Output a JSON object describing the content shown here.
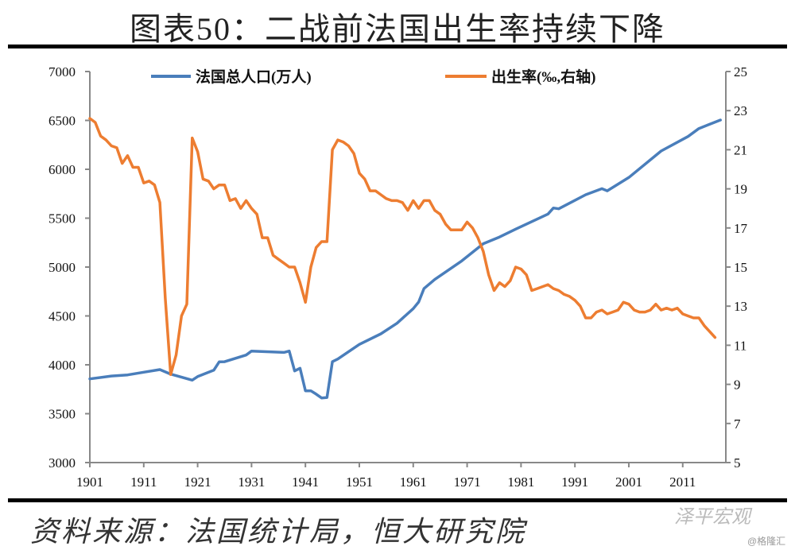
{
  "title": "图表50：二战前法国出生率持续下降",
  "source": "资料来源：法国统计局，恒大研究院",
  "watermark": "泽平宏观",
  "watermark2": "@格隆汇",
  "chart_data": {
    "type": "line",
    "title": "图表50：二战前法国出生率持续下降",
    "xlabel": "",
    "ylabel": "",
    "xlim": [
      1901,
      2019
    ],
    "ylim": [
      3000,
      7000
    ],
    "y2lim": [
      5,
      25
    ],
    "grid": false,
    "legend": "top",
    "x_ticks": [
      "1901",
      "1911",
      "1921",
      "1931",
      "1941",
      "1951",
      "1961",
      "1971",
      "1981",
      "1991",
      "2001",
      "2011"
    ],
    "y_ticks": [
      "3000",
      "3500",
      "4000",
      "4500",
      "5000",
      "5500",
      "6000",
      "6500",
      "7000"
    ],
    "y2_ticks": [
      "5",
      "7",
      "9",
      "11",
      "13",
      "15",
      "17",
      "19",
      "21",
      "23",
      "25"
    ],
    "colors": {
      "population": "#4a7ebb",
      "birth_rate": "#ed7d31"
    },
    "series": [
      {
        "name": "法国总人口(万人)",
        "axis": "left",
        "points": [
          [
            1901,
            3856
          ],
          [
            1905,
            3885
          ],
          [
            1908,
            3897
          ],
          [
            1911,
            3924
          ],
          [
            1914,
            3951
          ],
          [
            1916,
            3905
          ],
          [
            1920,
            3843
          ],
          [
            1921,
            3880
          ],
          [
            1924,
            3945
          ],
          [
            1925,
            4030
          ],
          [
            1926,
            4032
          ],
          [
            1930,
            4100
          ],
          [
            1931,
            4141
          ],
          [
            1937,
            4127
          ],
          [
            1938,
            4141
          ],
          [
            1939,
            3937
          ],
          [
            1940,
            3965
          ],
          [
            1941,
            3734
          ],
          [
            1942,
            3734
          ],
          [
            1943,
            3700
          ],
          [
            1944,
            3661
          ],
          [
            1945,
            3666
          ],
          [
            1946,
            4032
          ],
          [
            1947,
            4059
          ],
          [
            1951,
            4209
          ],
          [
            1955,
            4317
          ],
          [
            1958,
            4425
          ],
          [
            1961,
            4575
          ],
          [
            1962,
            4642
          ],
          [
            1963,
            4780
          ],
          [
            1965,
            4873
          ],
          [
            1970,
            5063
          ],
          [
            1974,
            5239
          ],
          [
            1977,
            5307
          ],
          [
            1980,
            5388
          ],
          [
            1986,
            5542
          ],
          [
            1987,
            5604
          ],
          [
            1988,
            5596
          ],
          [
            1993,
            5740
          ],
          [
            1996,
            5802
          ],
          [
            1997,
            5780
          ],
          [
            2001,
            5916
          ],
          [
            2007,
            6187
          ],
          [
            2012,
            6336
          ],
          [
            2014,
            6417
          ],
          [
            2018,
            6504
          ]
        ]
      },
      {
        "name": "出生率(‰,右轴)",
        "axis": "right",
        "points": [
          [
            1901,
            22.6
          ],
          [
            1902,
            22.4
          ],
          [
            1903,
            21.7
          ],
          [
            1904,
            21.5
          ],
          [
            1905,
            21.2
          ],
          [
            1906,
            21.1
          ],
          [
            1907,
            20.3
          ],
          [
            1908,
            20.7
          ],
          [
            1909,
            20.1
          ],
          [
            1910,
            20.1
          ],
          [
            1911,
            19.3
          ],
          [
            1912,
            19.4
          ],
          [
            1913,
            19.2
          ],
          [
            1914,
            18.3
          ],
          [
            1915,
            13.4
          ],
          [
            1916,
            9.5
          ],
          [
            1917,
            10.5
          ],
          [
            1918,
            12.5
          ],
          [
            1919,
            13.1
          ],
          [
            1920,
            21.6
          ],
          [
            1921,
            20.9
          ],
          [
            1922,
            19.5
          ],
          [
            1923,
            19.4
          ],
          [
            1924,
            19.0
          ],
          [
            1925,
            19.2
          ],
          [
            1926,
            19.2
          ],
          [
            1927,
            18.4
          ],
          [
            1928,
            18.5
          ],
          [
            1929,
            18.0
          ],
          [
            1930,
            18.4
          ],
          [
            1931,
            18.0
          ],
          [
            1932,
            17.7
          ],
          [
            1933,
            16.5
          ],
          [
            1934,
            16.5
          ],
          [
            1935,
            15.6
          ],
          [
            1936,
            15.4
          ],
          [
            1937,
            15.2
          ],
          [
            1938,
            15.0
          ],
          [
            1939,
            15.0
          ],
          [
            1940,
            14.2
          ],
          [
            1941,
            13.2
          ],
          [
            1942,
            15.0
          ],
          [
            1943,
            16.0
          ],
          [
            1944,
            16.3
          ],
          [
            1945,
            16.3
          ],
          [
            1946,
            21.0
          ],
          [
            1947,
            21.5
          ],
          [
            1948,
            21.4
          ],
          [
            1949,
            21.2
          ],
          [
            1950,
            20.8
          ],
          [
            1951,
            19.8
          ],
          [
            1952,
            19.5
          ],
          [
            1953,
            18.9
          ],
          [
            1954,
            18.9
          ],
          [
            1955,
            18.7
          ],
          [
            1956,
            18.5
          ],
          [
            1957,
            18.4
          ],
          [
            1958,
            18.4
          ],
          [
            1959,
            18.3
          ],
          [
            1960,
            17.9
          ],
          [
            1961,
            18.4
          ],
          [
            1962,
            18.0
          ],
          [
            1963,
            18.4
          ],
          [
            1964,
            18.4
          ],
          [
            1965,
            17.9
          ],
          [
            1966,
            17.7
          ],
          [
            1967,
            17.2
          ],
          [
            1968,
            16.9
          ],
          [
            1969,
            16.9
          ],
          [
            1970,
            16.9
          ],
          [
            1971,
            17.3
          ],
          [
            1972,
            17.0
          ],
          [
            1973,
            16.5
          ],
          [
            1974,
            15.8
          ],
          [
            1975,
            14.6
          ],
          [
            1976,
            13.8
          ],
          [
            1977,
            14.2
          ],
          [
            1978,
            14.0
          ],
          [
            1979,
            14.3
          ],
          [
            1980,
            15.0
          ],
          [
            1981,
            14.9
          ],
          [
            1982,
            14.6
          ],
          [
            1983,
            13.8
          ],
          [
            1984,
            13.9
          ],
          [
            1985,
            14.0
          ],
          [
            1986,
            14.1
          ],
          [
            1987,
            13.9
          ],
          [
            1988,
            13.8
          ],
          [
            1989,
            13.6
          ],
          [
            1990,
            13.5
          ],
          [
            1991,
            13.3
          ],
          [
            1992,
            13.0
          ],
          [
            1993,
            12.4
          ],
          [
            1994,
            12.4
          ],
          [
            1995,
            12.7
          ],
          [
            1996,
            12.8
          ],
          [
            1997,
            12.6
          ],
          [
            1998,
            12.7
          ],
          [
            1999,
            12.8
          ],
          [
            2000,
            13.2
          ],
          [
            2001,
            13.1
          ],
          [
            2002,
            12.8
          ],
          [
            2003,
            12.7
          ],
          [
            2004,
            12.7
          ],
          [
            2005,
            12.8
          ],
          [
            2006,
            13.1
          ],
          [
            2007,
            12.8
          ],
          [
            2008,
            12.9
          ],
          [
            2009,
            12.8
          ],
          [
            2010,
            12.9
          ],
          [
            2011,
            12.6
          ],
          [
            2012,
            12.5
          ],
          [
            2013,
            12.4
          ],
          [
            2014,
            12.4
          ],
          [
            2015,
            12.0
          ],
          [
            2016,
            11.7
          ],
          [
            2017,
            11.4
          ]
        ]
      }
    ]
  }
}
